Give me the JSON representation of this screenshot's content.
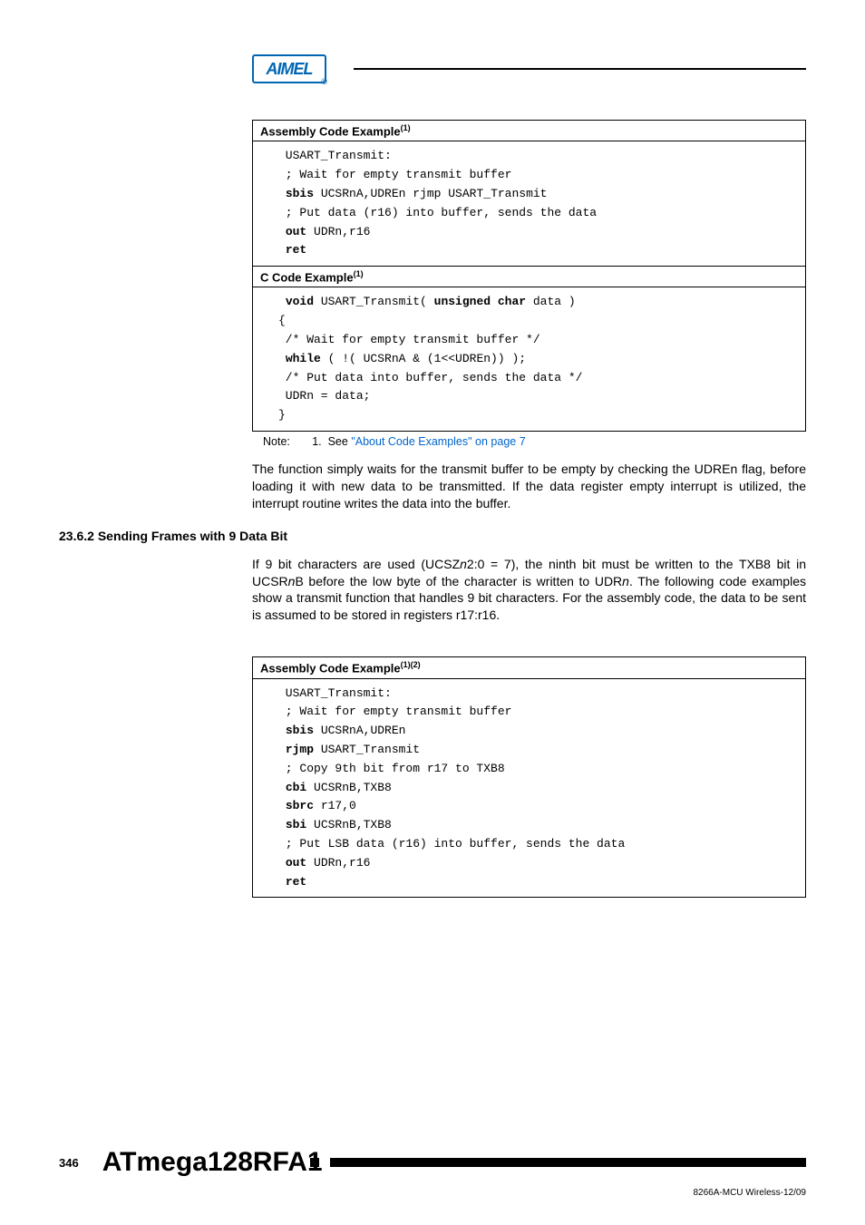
{
  "header": {
    "logo_text": "AIMEL",
    "logo_reg": "®"
  },
  "codebox1": {
    "title_prefix": "Assembly Code Example",
    "title_sup": "(1)",
    "lines": [
      {
        "t": "USART_Transmit:"
      },
      {
        "t": "; Wait for empty transmit buffer"
      },
      {
        "parts": [
          {
            "kw": true,
            "t": "sbis"
          },
          {
            "t": " UCSRnA,UDREn rjmp USART_Transmit"
          }
        ]
      },
      {
        "t": "; Put data (r16) into buffer, sends the data"
      },
      {
        "parts": [
          {
            "kw": true,
            "t": "out"
          },
          {
            "t": " UDRn,r16"
          }
        ]
      },
      {
        "parts": [
          {
            "kw": true,
            "t": "ret"
          }
        ]
      }
    ]
  },
  "codebox2": {
    "title_prefix": "C Code Example",
    "title_sup": "(1)",
    "lines": [
      {
        "parts": [
          {
            "kw": true,
            "t": "void"
          },
          {
            "t": " USART_Transmit( "
          },
          {
            "kw": true,
            "t": "unsigned char"
          },
          {
            "t": " data )"
          }
        ]
      },
      {
        "t": "{",
        "outdent": true
      },
      {
        "t": "/* Wait for empty transmit buffer */"
      },
      {
        "parts": [
          {
            "kw": true,
            "t": "while"
          },
          {
            "t": " ( !( UCSRnA & (1<<UDREn)) );"
          }
        ]
      },
      {
        "t": "/* Put data into buffer, sends the data */"
      },
      {
        "t": "UDRn = data;"
      },
      {
        "t": "}",
        "outdent": true
      }
    ]
  },
  "note1": {
    "label": "Note:",
    "num": "1.",
    "pre": "See ",
    "link": "\"About Code Examples\" on page 7"
  },
  "para1": "The function simply waits for the transmit buffer to be empty by checking the UDREn flag, before loading it with new data to be transmitted. If the data register empty interrupt is utilized, the interrupt routine writes the data into the buffer.",
  "section": "23.6.2 Sending Frames with 9 Data Bit",
  "para2_pre": "If 9 bit characters are used (UCSZ",
  "para2_it1": "n",
  "para2_mid1": "2:0 = 7), the ninth bit must be written to the TXB8 bit in UCSR",
  "para2_it2": "n",
  "para2_mid2": "B before the low byte of the character is written to UDR",
  "para2_it3": "n",
  "para2_end": ". The following code examples show a transmit function that handles 9 bit characters. For the assembly code, the data to be sent is assumed to be stored in registers r17:r16.",
  "codebox3": {
    "title_prefix": "Assembly Code Example",
    "title_sup": "(1)(2)",
    "lines": [
      {
        "t": "USART_Transmit:"
      },
      {
        "t": "; Wait for empty transmit buffer"
      },
      {
        "parts": [
          {
            "kw": true,
            "t": "sbis"
          },
          {
            "t": " UCSRnA,UDREn"
          }
        ]
      },
      {
        "parts": [
          {
            "kw": true,
            "t": "rjmp"
          },
          {
            "t": " USART_Transmit"
          }
        ]
      },
      {
        "t": "; Copy 9th bit from r17 to TXB8"
      },
      {
        "parts": [
          {
            "kw": true,
            "t": "cbi"
          },
          {
            "t": " UCSRnB,TXB8"
          }
        ]
      },
      {
        "parts": [
          {
            "kw": true,
            "t": "sbrc"
          },
          {
            "t": " r17,0"
          }
        ]
      },
      {
        "parts": [
          {
            "kw": true,
            "t": "sbi"
          },
          {
            "t": " UCSRnB,TXB8"
          }
        ]
      },
      {
        "t": "; Put LSB data (r16) into buffer, sends the data"
      },
      {
        "parts": [
          {
            "kw": true,
            "t": "out"
          },
          {
            "t": " UDRn,r16"
          }
        ]
      },
      {
        "parts": [
          {
            "kw": true,
            "t": "ret"
          }
        ]
      }
    ]
  },
  "footer": {
    "page": "346",
    "title": "ATmega128RFA1",
    "rev": "8266A-MCU Wireless-12/09"
  },
  "colors": {
    "link": "#0066cc",
    "logo": "#0066b3"
  }
}
